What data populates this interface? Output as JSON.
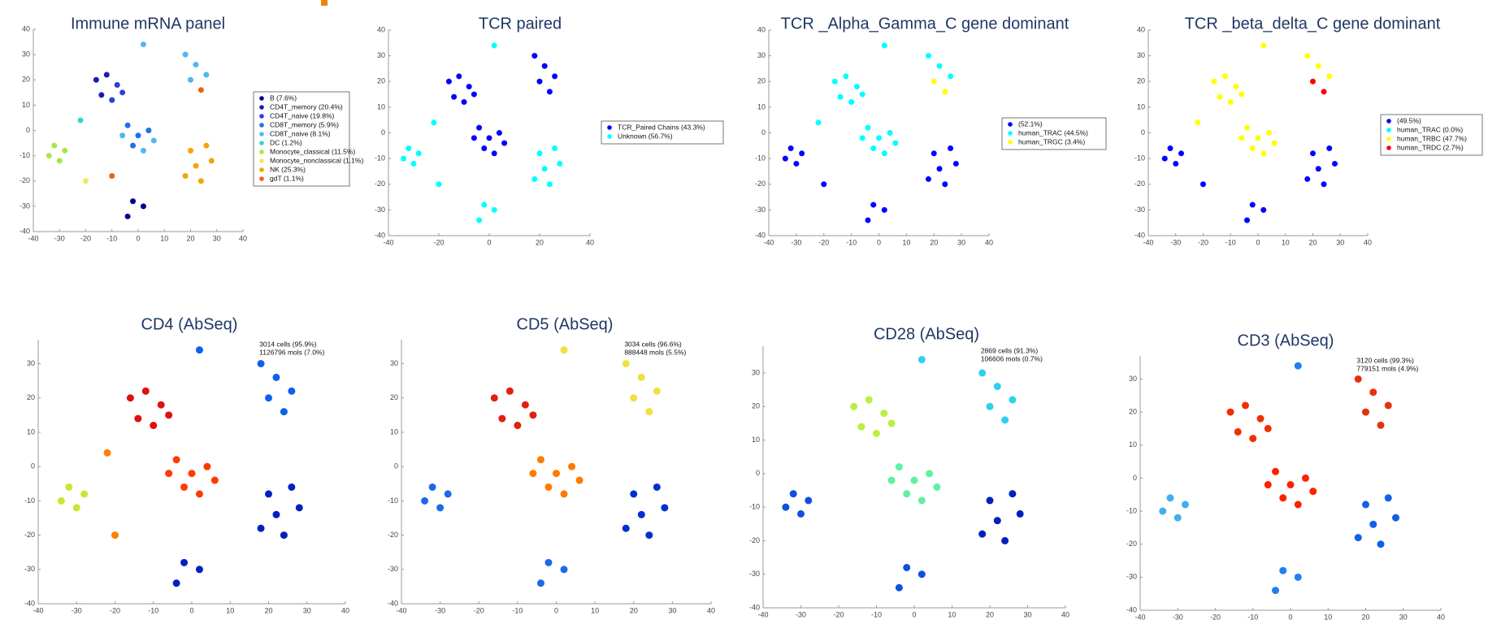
{
  "chart_data": [
    {
      "type": "scatter",
      "title": "Immune mRNA panel",
      "xlim": [
        -40,
        40
      ],
      "ylim": [
        -40,
        40
      ],
      "xticks": [
        -40,
        -30,
        -20,
        -10,
        0,
        10,
        20,
        30,
        40
      ],
      "yticks": [
        -40,
        -30,
        -20,
        -10,
        0,
        10,
        20,
        30,
        40
      ],
      "legend": "right",
      "series": [
        {
          "name": "B (7.6%)",
          "color": "#00008b",
          "x": [
            -2,
            2,
            -4
          ],
          "y": [
            -28,
            -30,
            -34
          ]
        },
        {
          "name": "CD4T_memory (20.4%)",
          "color": "#1a1ab8",
          "x": [
            -16,
            -12,
            -14
          ],
          "y": [
            20,
            22,
            14
          ]
        },
        {
          "name": "CD4T_naive (19.8%)",
          "color": "#2a3fd6",
          "x": [
            -8,
            -10,
            -6
          ],
          "y": [
            18,
            12,
            15
          ]
        },
        {
          "name": "CD8T_memory (5.9%)",
          "color": "#1f6fe8",
          "x": [
            -4,
            0,
            4,
            -2
          ],
          "y": [
            2,
            -2,
            0,
            -6
          ]
        },
        {
          "name": "CD8T_naive (8.1%)",
          "color": "#4db8f0",
          "x": [
            2,
            6,
            -6,
            18,
            22,
            26,
            20,
            2
          ],
          "y": [
            -8,
            -4,
            -2,
            30,
            26,
            22,
            20,
            34
          ]
        },
        {
          "name": "DC (1.2%)",
          "color": "#36d6c8",
          "x": [
            -22
          ],
          "y": [
            4
          ]
        },
        {
          "name": "Monocyte_classical (11.5%)",
          "color": "#a6e84a",
          "x": [
            -32,
            -30,
            -28,
            -34
          ],
          "y": [
            -6,
            -12,
            -8,
            -10
          ]
        },
        {
          "name": "Monocyte_nonclassical (1.1%)",
          "color": "#f2e85c",
          "x": [
            -20
          ],
          "y": [
            -20
          ]
        },
        {
          "name": "NK (25.3%)",
          "color": "#f4a30a",
          "x": [
            20,
            26,
            22,
            28,
            24,
            18
          ],
          "y": [
            -8,
            -6,
            -14,
            -12,
            -20,
            -18
          ]
        },
        {
          "name": "gdT (1.1%)",
          "color": "#f06010",
          "x": [
            24,
            -10
          ],
          "y": [
            16,
            -18
          ]
        }
      ]
    },
    {
      "type": "scatter",
      "title": "TCR paired",
      "xlim": [
        -40,
        40
      ],
      "ylim": [
        -40,
        40
      ],
      "xticks": [
        -40,
        -20,
        0,
        20,
        40
      ],
      "yticks": [
        -40,
        -30,
        -20,
        -10,
        0,
        10,
        20,
        30,
        40
      ],
      "legend": "right",
      "series": [
        {
          "name": "TCR_Paired Chains (43.3%)",
          "color": "#0000ff",
          "x": [
            -16,
            -12,
            -8,
            -14,
            -10,
            -6,
            -4,
            0,
            4,
            -2,
            2,
            6,
            -6,
            18,
            22,
            26,
            20,
            24
          ],
          "y": [
            20,
            22,
            18,
            14,
            12,
            15,
            2,
            -2,
            0,
            -6,
            -8,
            -4,
            -2,
            30,
            26,
            22,
            20,
            16
          ]
        },
        {
          "name": "Unknown (56.7%)",
          "color": "#00ffff",
          "x": [
            20,
            26,
            22,
            28,
            24,
            18,
            -32,
            -30,
            -28,
            -34,
            -2,
            2,
            -4,
            2,
            -22,
            -20
          ],
          "y": [
            -8,
            -6,
            -14,
            -12,
            -20,
            -18,
            -6,
            -12,
            -8,
            -10,
            -28,
            -30,
            -34,
            34,
            4,
            -20
          ]
        }
      ]
    },
    {
      "type": "scatter",
      "title": "TCR _Alpha_Gamma_C gene dominant",
      "xlim": [
        -40,
        40
      ],
      "ylim": [
        -40,
        40
      ],
      "xticks": [
        -40,
        -30,
        -20,
        -10,
        0,
        10,
        20,
        30,
        40
      ],
      "yticks": [
        -40,
        -30,
        -20,
        -10,
        0,
        10,
        20,
        30,
        40
      ],
      "legend": "right",
      "series": [
        {
          "name": "(52.1%)",
          "color": "#0000ff",
          "x": [
            20,
            26,
            22,
            28,
            24,
            18,
            -32,
            -30,
            -28,
            -34,
            -2,
            2,
            -4,
            -20
          ],
          "y": [
            -8,
            -6,
            -14,
            -12,
            -20,
            -18,
            -6,
            -12,
            -8,
            -10,
            -28,
            -30,
            -34,
            -20
          ]
        },
        {
          "name": "human_TRAC (44.5%)",
          "color": "#00ffff",
          "x": [
            -16,
            -12,
            -8,
            -14,
            -10,
            -6,
            -4,
            0,
            4,
            -2,
            2,
            6,
            -6,
            18,
            22,
            26,
            2,
            -22
          ],
          "y": [
            20,
            22,
            18,
            14,
            12,
            15,
            2,
            -2,
            0,
            -6,
            -8,
            -4,
            -2,
            30,
            26,
            22,
            34,
            4
          ]
        },
        {
          "name": "human_TRGC (3.4%)",
          "color": "#ffff00",
          "x": [
            20,
            24
          ],
          "y": [
            20,
            16
          ]
        }
      ]
    },
    {
      "type": "scatter",
      "title": "TCR _beta_delta_C gene dominant",
      "xlim": [
        -40,
        40
      ],
      "ylim": [
        -40,
        40
      ],
      "xticks": [
        -40,
        -30,
        -20,
        -10,
        0,
        10,
        20,
        30,
        40
      ],
      "yticks": [
        -40,
        -30,
        -20,
        -10,
        0,
        10,
        20,
        30,
        40
      ],
      "legend": "right",
      "series": [
        {
          "name": "(49.5%)",
          "color": "#0000ff",
          "x": [
            20,
            26,
            22,
            28,
            24,
            18,
            -32,
            -30,
            -28,
            -34,
            -2,
            2,
            -4,
            -20
          ],
          "y": [
            -8,
            -6,
            -14,
            -12,
            -20,
            -18,
            -6,
            -12,
            -8,
            -10,
            -28,
            -30,
            -34,
            -20
          ]
        },
        {
          "name": "human_TRAC (0.0%)",
          "color": "#00ffff",
          "x": [],
          "y": []
        },
        {
          "name": "human_TRBC (47.7%)",
          "color": "#ffff00",
          "x": [
            -16,
            -12,
            -8,
            -14,
            -10,
            -6,
            -4,
            0,
            4,
            -2,
            2,
            6,
            -6,
            18,
            22,
            26,
            2,
            -22
          ],
          "y": [
            20,
            22,
            18,
            14,
            12,
            15,
            2,
            -2,
            0,
            -6,
            -8,
            -4,
            -2,
            30,
            26,
            22,
            34,
            4
          ]
        },
        {
          "name": "human_TRDC (2.7%)",
          "color": "#ff0000",
          "x": [
            20,
            24
          ],
          "y": [
            20,
            16
          ]
        }
      ]
    },
    {
      "type": "scatter",
      "title": "CD4 (AbSeq)",
      "xlim": [
        -40,
        40
      ],
      "ylim": [
        -40,
        37
      ],
      "xticks": [
        -40,
        -30,
        -20,
        -10,
        0,
        10,
        20,
        30,
        40
      ],
      "yticks": [
        -40,
        -30,
        -20,
        -10,
        0,
        10,
        20,
        30
      ],
      "annotations": [
        "3014 cells (95.9%)",
        "1126796 mols (7.0%)"
      ],
      "series": [
        {
          "color": "#e01010",
          "x": [
            -16,
            -12,
            -8,
            -14,
            -10,
            -6
          ],
          "y": [
            20,
            22,
            18,
            14,
            12,
            15
          ]
        },
        {
          "color": "#ff3a00",
          "x": [
            -4,
            0,
            4,
            -2,
            2,
            6,
            -6
          ],
          "y": [
            2,
            -2,
            0,
            -6,
            -8,
            -4,
            -2
          ]
        },
        {
          "color": "#1060f0",
          "x": [
            18,
            22,
            26,
            20,
            24,
            2
          ],
          "y": [
            30,
            26,
            22,
            20,
            16,
            34
          ]
        },
        {
          "color": "#0020c0",
          "x": [
            20,
            26,
            22,
            28,
            24,
            18,
            -2,
            2,
            -4
          ],
          "y": [
            -8,
            -6,
            -14,
            -12,
            -20,
            -18,
            -28,
            -30,
            -34
          ]
        },
        {
          "color": "#c8e830",
          "x": [
            -32,
            -30,
            -28,
            -34
          ],
          "y": [
            -6,
            -12,
            -8,
            -10
          ]
        },
        {
          "color": "#ff8000",
          "x": [
            -22,
            -20
          ],
          "y": [
            4,
            -20
          ]
        }
      ]
    },
    {
      "type": "scatter",
      "title": "CD5 (AbSeq)",
      "xlim": [
        -40,
        40
      ],
      "ylim": [
        -40,
        37
      ],
      "xticks": [
        -40,
        -30,
        -20,
        -10,
        0,
        10,
        20,
        30,
        40
      ],
      "yticks": [
        -40,
        -30,
        -20,
        -10,
        0,
        10,
        20,
        30
      ],
      "annotations": [
        "3034 cells (96.6%)",
        "888448 mols (5.5%)"
      ],
      "series": [
        {
          "color": "#e02010",
          "x": [
            -16,
            -12,
            -8,
            -14,
            -10,
            -6
          ],
          "y": [
            20,
            22,
            18,
            14,
            12,
            15
          ]
        },
        {
          "color": "#ff7a00",
          "x": [
            -4,
            0,
            4,
            -2,
            2,
            6,
            -6
          ],
          "y": [
            2,
            -2,
            0,
            -6,
            -8,
            -4,
            -2
          ]
        },
        {
          "color": "#f0e040",
          "x": [
            18,
            22,
            26,
            20,
            24,
            2
          ],
          "y": [
            30,
            26,
            22,
            20,
            16,
            34
          ]
        },
        {
          "color": "#0030d0",
          "x": [
            20,
            26,
            22,
            28,
            24,
            18
          ],
          "y": [
            -8,
            -6,
            -14,
            -12,
            -20,
            -18
          ]
        },
        {
          "color": "#1a6ae8",
          "x": [
            -32,
            -30,
            -28,
            -34,
            -2,
            2,
            -4
          ],
          "y": [
            -6,
            -12,
            -8,
            -10,
            -28,
            -30,
            -34
          ]
        }
      ]
    },
    {
      "type": "scatter",
      "title": "CD28 (AbSeq)",
      "xlim": [
        -40,
        40
      ],
      "ylim": [
        -40,
        38
      ],
      "xticks": [
        -40,
        -30,
        -20,
        -10,
        0,
        10,
        20,
        30,
        40
      ],
      "yticks": [
        -40,
        -30,
        -20,
        -10,
        0,
        10,
        20,
        30
      ],
      "annotations": [
        "2869 cells (91.3%)",
        "106606 mols (0.7%)"
      ],
      "series": [
        {
          "color": "#b8f040",
          "x": [
            -16,
            -12,
            -8,
            -14,
            -10,
            -6
          ],
          "y": [
            20,
            22,
            18,
            14,
            12,
            15
          ]
        },
        {
          "color": "#60f0a0",
          "x": [
            -4,
            0,
            4,
            -2,
            2,
            6,
            -6
          ],
          "y": [
            2,
            -2,
            0,
            -6,
            -8,
            -4,
            -2
          ]
        },
        {
          "color": "#30d0f0",
          "x": [
            18,
            22,
            26,
            20,
            24,
            2
          ],
          "y": [
            30,
            26,
            22,
            20,
            16,
            34
          ]
        },
        {
          "color": "#0020c0",
          "x": [
            20,
            26,
            22,
            28,
            24,
            18
          ],
          "y": [
            -8,
            -6,
            -14,
            -12,
            -20,
            -18
          ]
        },
        {
          "color": "#1050e0",
          "x": [
            -32,
            -30,
            -28,
            -34,
            -2,
            2,
            -4
          ],
          "y": [
            -6,
            -12,
            -8,
            -10,
            -28,
            -30,
            -34
          ]
        }
      ]
    },
    {
      "type": "scatter",
      "title": "CD3 (AbSeq)",
      "xlim": [
        -40,
        40
      ],
      "ylim": [
        -40,
        37
      ],
      "xticks": [
        -40,
        -30,
        -20,
        -10,
        0,
        10,
        20,
        30,
        40
      ],
      "yticks": [
        -40,
        -30,
        -20,
        -10,
        0,
        10,
        20,
        30
      ],
      "annotations": [
        "3120 cells (99.3%)",
        "779151 mols (4.9%)"
      ],
      "series": [
        {
          "color": "#f03000",
          "x": [
            -16,
            -12,
            -8,
            -14,
            -10,
            -6
          ],
          "y": [
            20,
            22,
            18,
            14,
            12,
            15
          ]
        },
        {
          "color": "#ff2000",
          "x": [
            -4,
            0,
            4,
            -2,
            2,
            6,
            -6
          ],
          "y": [
            2,
            -2,
            0,
            -6,
            -8,
            -4,
            -2
          ]
        },
        {
          "color": "#e83010",
          "x": [
            18,
            22,
            26,
            20,
            24
          ],
          "y": [
            30,
            26,
            22,
            20,
            16
          ]
        },
        {
          "color": "#1060e8",
          "x": [
            20,
            26,
            22,
            28,
            24,
            18
          ],
          "y": [
            -8,
            -6,
            -14,
            -12,
            -20,
            -18
          ]
        },
        {
          "color": "#40b0f0",
          "x": [
            -32,
            -30,
            -28,
            -34
          ],
          "y": [
            -6,
            -12,
            -8,
            -10
          ]
        },
        {
          "color": "#2080f0",
          "x": [
            -2,
            2,
            -4,
            2
          ],
          "y": [
            -28,
            -30,
            -34,
            34
          ]
        }
      ]
    }
  ]
}
